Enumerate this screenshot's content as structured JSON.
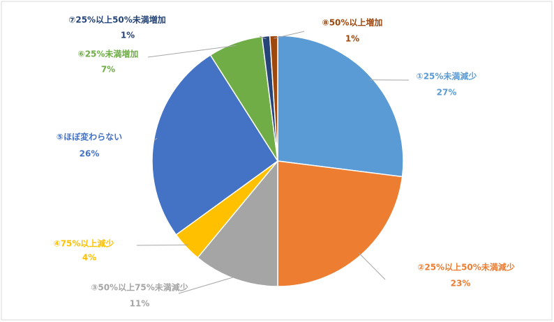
{
  "chart_data": {
    "type": "pie",
    "categories": [
      "①25%未満減少",
      "②25%以上50%未満減少",
      "③50%以上75%未満減少",
      "④75%以上減少",
      "⑤ほぼ変わらない",
      "⑥25%未満増加",
      "⑦25%以上50%未満増加",
      "⑧50%以上増加"
    ],
    "values": [
      27,
      23,
      11,
      4,
      26,
      7,
      1,
      1
    ],
    "value_labels": [
      "27%",
      "23%",
      "11%",
      "4%",
      "26%",
      "7%",
      "1%",
      "1%"
    ],
    "colors": [
      "#5b9bd5",
      "#ed7d31",
      "#a5a5a5",
      "#ffc000",
      "#4472c4",
      "#70ad47",
      "#264478",
      "#9e480e"
    ]
  }
}
